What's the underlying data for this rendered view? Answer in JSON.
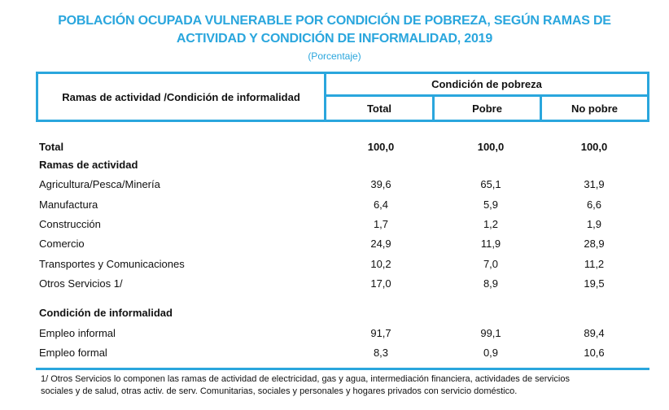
{
  "title_line1": "POBLACIÓN OCUPADA VULNERABLE POR CONDICIÓN DE POBREZA, SEGÚN RAMAS DE",
  "title_line2": "ACTIVIDAD Y CONDICIÓN DE INFORMALIDAD, 2019",
  "subtitle": "(Porcentaje)",
  "header": {
    "row_header": "Ramas de actividad /Condición de informalidad",
    "group": "Condición de pobreza",
    "columns": [
      "Total",
      "Pobre",
      "No pobre"
    ]
  },
  "rows": [
    {
      "label": "Total",
      "values": [
        "100,0",
        "100,0",
        "100,0"
      ],
      "bold": true
    },
    {
      "label": "Ramas de actividad",
      "values": [
        "",
        "",
        ""
      ],
      "bold": true
    },
    {
      "label": "Agricultura/Pesca/Minería",
      "values": [
        "39,6",
        "65,1",
        "31,9"
      ]
    },
    {
      "label": "Manufactura",
      "values": [
        "6,4",
        "5,9",
        "6,6"
      ]
    },
    {
      "label": "Construcción",
      "values": [
        "1,7",
        "1,2",
        "1,9"
      ]
    },
    {
      "label": "Comercio",
      "values": [
        "24,9",
        "11,9",
        "28,9"
      ]
    },
    {
      "label": "Transportes y Comunicaciones",
      "values": [
        "10,2",
        "7,0",
        "11,2"
      ]
    },
    {
      "label": "Otros Servicios 1/",
      "values": [
        "17,0",
        "8,9",
        "19,5"
      ]
    },
    {
      "label": "Condición de informalidad",
      "values": [
        "",
        "",
        ""
      ],
      "bold": true
    },
    {
      "label": "Empleo informal",
      "values": [
        "91,7",
        "99,1",
        "89,4"
      ]
    },
    {
      "label": "Empleo formal",
      "values": [
        "8,3",
        "0,9",
        "10,6"
      ]
    }
  ],
  "note_line1": "1/ Otros Servicios lo componen las ramas de actividad de electricidad, gas y agua, intermediación financiera, actividades de servicios",
  "note_line2": "sociales y de salud, otras activ. de serv. Comunitarias, sociales y personales y hogares privados con servicio doméstico.",
  "accent_color": "#2aa6dd"
}
